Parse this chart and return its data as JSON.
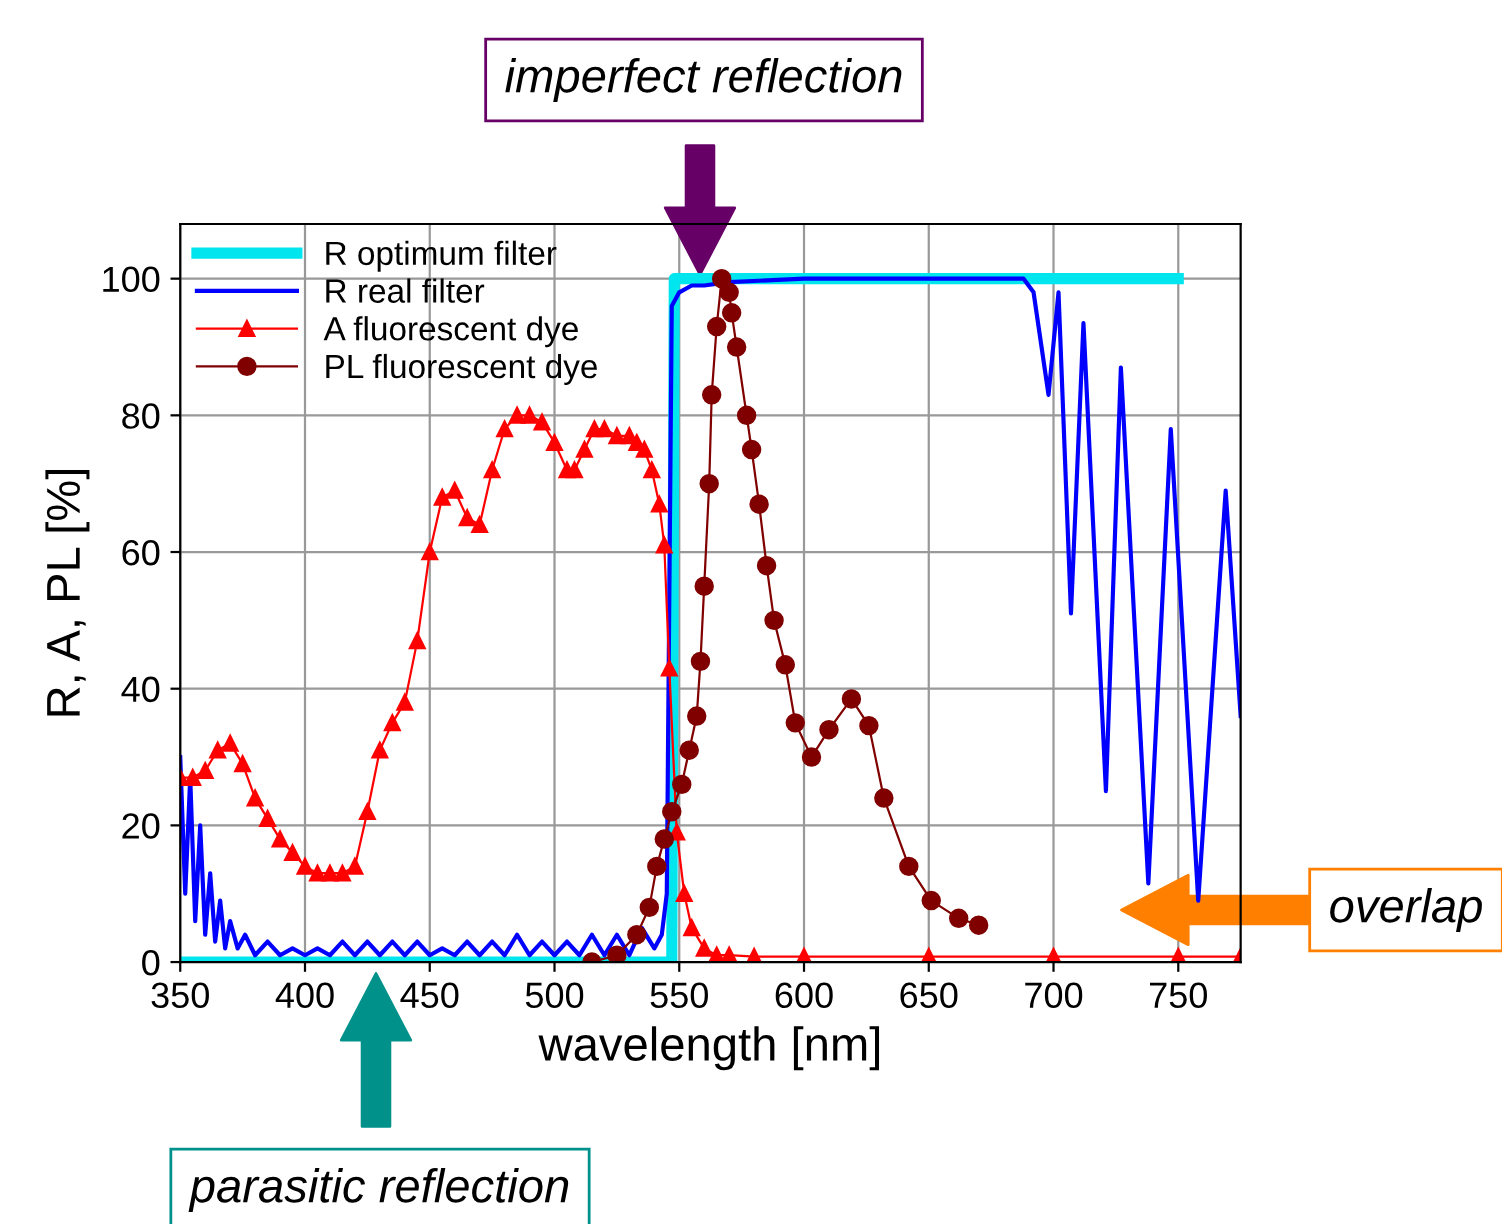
{
  "chart_data": {
    "type": "line",
    "xlabel": "wavelength [nm]",
    "ylabel": "R, A, PL [%]",
    "xlim": [
      350,
      775
    ],
    "xticks": [
      350,
      400,
      450,
      500,
      550,
      600,
      650,
      700,
      750
    ],
    "ylim": [
      0,
      108
    ],
    "yticks": [
      0,
      20,
      40,
      60,
      80,
      100
    ],
    "grid": true,
    "legend": "top left",
    "series": [
      {
        "name": "R optimum filter",
        "color": "#00e5ee",
        "marker": "none",
        "x": [
          350,
          547,
          548,
          750
        ],
        "values": [
          0,
          0,
          100,
          100
        ]
      },
      {
        "name": "R real filter",
        "color": "#0000ff",
        "marker": "none",
        "x": [
          350,
          352,
          354,
          356,
          358,
          360,
          362,
          364,
          366,
          368,
          370,
          373,
          376,
          380,
          385,
          390,
          395,
          400,
          405,
          410,
          415,
          420,
          425,
          430,
          435,
          440,
          445,
          450,
          455,
          460,
          465,
          470,
          475,
          480,
          485,
          490,
          495,
          500,
          505,
          510,
          515,
          520,
          525,
          530,
          535,
          540,
          543,
          545,
          547,
          550,
          555,
          560,
          570,
          600,
          650,
          688,
          692,
          698,
          702,
          707,
          712,
          721,
          727,
          738,
          747,
          758,
          769,
          775
        ],
        "values": [
          30,
          10,
          27,
          6,
          20,
          4,
          13,
          3,
          9,
          2,
          6,
          2,
          4,
          1,
          3,
          1,
          2,
          1,
          2,
          1,
          3,
          1,
          3,
          1,
          3,
          1,
          3,
          1,
          2,
          1,
          3,
          1,
          3,
          1,
          4,
          1,
          3,
          1,
          3,
          1,
          4,
          1,
          4,
          1,
          5,
          2,
          4,
          10,
          96,
          98,
          99,
          99,
          99.5,
          100,
          100,
          100,
          98,
          83,
          98,
          51,
          93.5,
          25,
          87,
          11.5,
          78,
          9,
          69,
          36
        ]
      },
      {
        "name": "A fluorescent dye",
        "color": "#ff0000",
        "marker": "triangle",
        "x": [
          350,
          355,
          360,
          365,
          370,
          375,
          380,
          385,
          390,
          395,
          400,
          405,
          410,
          415,
          420,
          425,
          430,
          435,
          440,
          445,
          450,
          455,
          460,
          465,
          470,
          475,
          480,
          485,
          490,
          495,
          500,
          505,
          508,
          512,
          516,
          520,
          525,
          530,
          533,
          536,
          539,
          542,
          544,
          546,
          549,
          552,
          555,
          560,
          565,
          570,
          580,
          600,
          650,
          700,
          750,
          775
        ],
        "values": [
          27,
          27,
          28,
          31,
          32,
          29,
          24,
          21,
          18,
          16,
          14,
          13,
          13,
          13,
          14,
          22,
          31,
          35,
          38,
          47,
          60,
          68,
          69,
          65,
          64,
          72,
          78,
          80,
          80,
          79,
          76,
          72,
          72,
          75,
          78,
          78,
          77,
          77,
          76,
          75,
          72,
          67,
          61,
          43,
          19,
          10,
          5,
          2,
          1,
          1,
          0.8,
          0.8,
          0.8,
          0.8,
          0.8,
          0.8
        ]
      },
      {
        "name": "PL fluorescent dye",
        "color": "#800000",
        "marker": "circle",
        "x": [
          515,
          525,
          533,
          538,
          541,
          544,
          547,
          551,
          554,
          557,
          558.5,
          560,
          562,
          563,
          565,
          567,
          570,
          571,
          573,
          577,
          579,
          582,
          585,
          588,
          592.5,
          596.5,
          603,
          610,
          619,
          626,
          632,
          642,
          651,
          662,
          670
        ],
        "values": [
          0,
          1,
          4,
          8,
          14,
          18,
          22,
          26,
          31,
          36,
          44,
          55,
          70,
          83,
          93,
          100,
          98,
          95,
          90,
          80,
          75,
          67,
          58,
          50,
          43.5,
          35,
          30,
          34,
          38.5,
          34.6,
          24,
          14,
          9,
          6.4,
          5.4
        ]
      }
    ],
    "annotations": [
      "imperfect reflection",
      "overlap",
      "parasitic reflection"
    ]
  }
}
